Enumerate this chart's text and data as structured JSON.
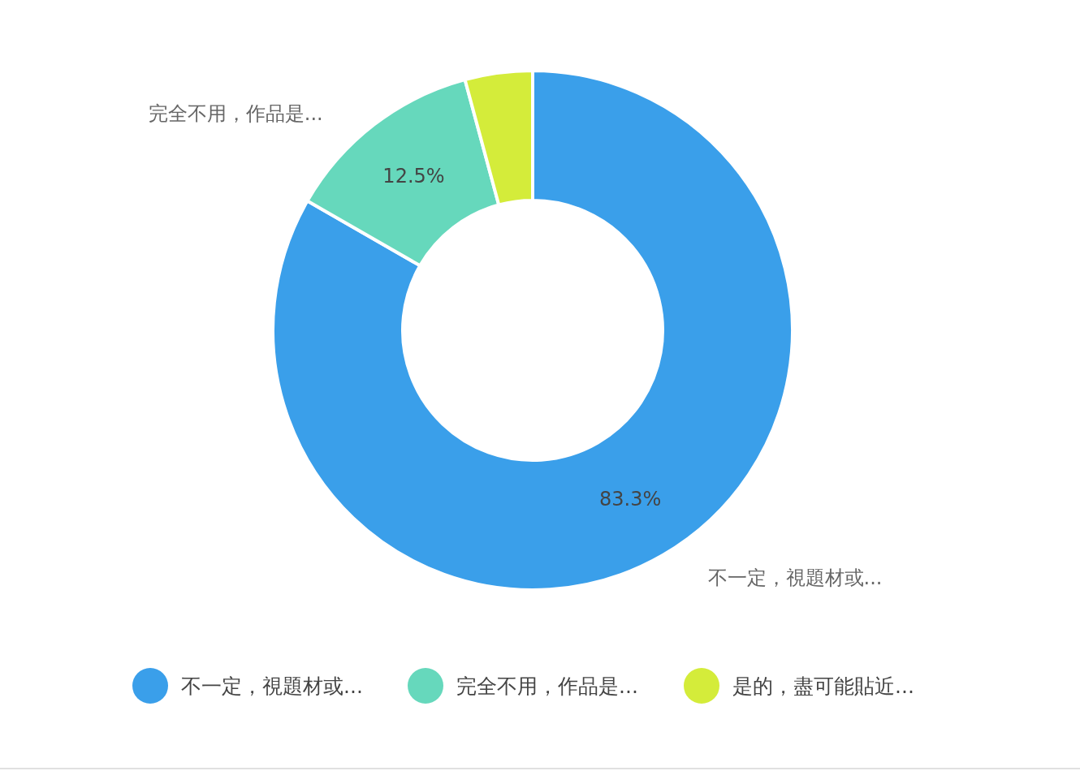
{
  "chart_data": {
    "type": "donut",
    "categories": [
      "不一定，視題材或...",
      "完全不用，作品是...",
      "是的，盡可能貼近..."
    ],
    "values": [
      83.3,
      12.5,
      4.2
    ],
    "colors": [
      "#3a9fea",
      "#66d8bc",
      "#d4ec3a"
    ],
    "value_labels": [
      "83.3%",
      "12.5%",
      null
    ],
    "annotations": [
      {
        "text": "不一定，視題材或...",
        "x": "不一定，視題材或..."
      },
      {
        "text": "完全不用，作品是...",
        "x": "完全不用，作品是..."
      }
    ],
    "legend": "bottom"
  }
}
